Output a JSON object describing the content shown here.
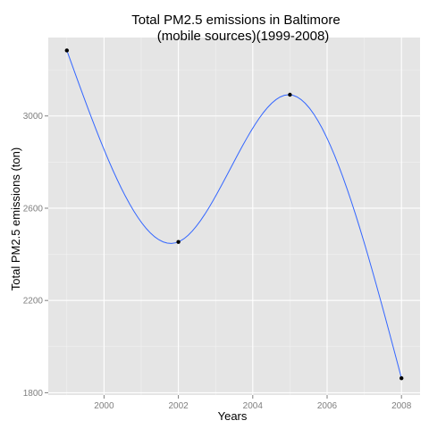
{
  "chart_data": {
    "type": "line",
    "title": "Total PM2.5 emissions in Baltimore",
    "subtitle": "(mobile sources)(1999-2008)",
    "xlabel": "Years",
    "ylabel": "Total PM2.5 emissions (ton)",
    "x_ticks": [
      2000,
      2002,
      2004,
      2006,
      2008
    ],
    "y_ticks": [
      1800,
      2200,
      2600,
      3000
    ],
    "xlim": [
      1998.5,
      2008.5
    ],
    "ylim": [
      1790,
      3340
    ],
    "grid": true,
    "points": [
      {
        "x": 1999,
        "y": 3284
      },
      {
        "x": 2002,
        "y": 2454
      },
      {
        "x": 2005,
        "y": 3092
      },
      {
        "x": 2008,
        "y": 1863
      }
    ],
    "line_color": "#3366FF",
    "point_color": "#000000",
    "panel_color": "#E5E5E5",
    "grid_color": "#FFFFFF"
  }
}
